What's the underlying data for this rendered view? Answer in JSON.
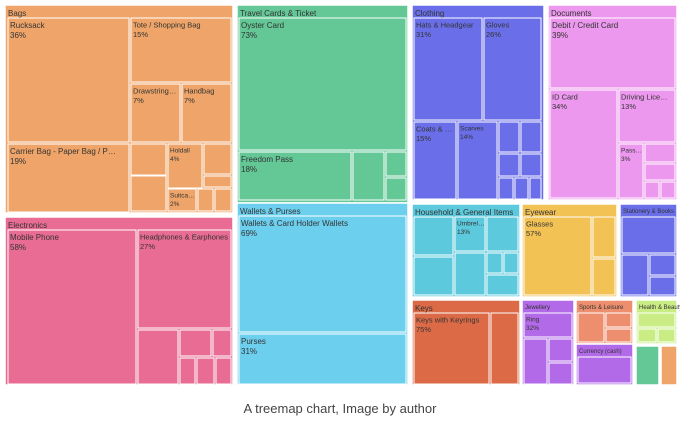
{
  "caption": "A treemap chart, Image by author",
  "chart_data": {
    "type": "treemap",
    "categories": [
      {
        "name": "Bags",
        "color": "#efa569",
        "children": [
          {
            "name": "Rucksack",
            "pct": "36%"
          },
          {
            "name": "Tote / Shopping Bag",
            "pct": "15%"
          },
          {
            "name": "Drawstring Bag",
            "pct": "7%"
          },
          {
            "name": "Handbag",
            "pct": "7%"
          },
          {
            "name": "Carrier Bag - Paper Bag / Plastic Bag",
            "pct": "19%"
          },
          {
            "name": "Holdall",
            "pct": "4%"
          },
          {
            "name": "Suitcase",
            "pct": "2%"
          }
        ]
      },
      {
        "name": "Travel Cards & Ticket",
        "color": "#63c796",
        "children": [
          {
            "name": "Oyster Card",
            "pct": "73%"
          },
          {
            "name": "Freedom Pass",
            "pct": "18%"
          }
        ]
      },
      {
        "name": "Clothing",
        "color": "#6a6fe9",
        "children": [
          {
            "name": "Hats & Headgear",
            "pct": "31%"
          },
          {
            "name": "Gloves",
            "pct": "26%"
          },
          {
            "name": "Coats & Jackets",
            "pct": "15%"
          },
          {
            "name": "Scarves",
            "pct": "14%"
          }
        ]
      },
      {
        "name": "Documents",
        "color": "#ec98ee",
        "children": [
          {
            "name": "Debit / Credit Card",
            "pct": "39%"
          },
          {
            "name": "ID Card",
            "pct": "34%"
          },
          {
            "name": "Driving Licence",
            "pct": "13%"
          },
          {
            "name": "Passport",
            "pct": "3%"
          }
        ]
      },
      {
        "name": "Electronics",
        "color": "#e96c94",
        "children": [
          {
            "name": "Mobile Phone",
            "pct": "58%"
          },
          {
            "name": "Headphones & Earphones",
            "pct": "27%"
          }
        ]
      },
      {
        "name": "Wallets & Purses",
        "color": "#6dcfee",
        "children": [
          {
            "name": "Wallets & Card Holder Wallets",
            "pct": "69%"
          },
          {
            "name": "Purses",
            "pct": "31%"
          }
        ]
      },
      {
        "name": "Household & General Items",
        "color": "#5cc9dc",
        "children": [
          {
            "name": "Umbrella",
            "pct": "13%"
          }
        ]
      },
      {
        "name": "Eyewear",
        "color": "#f2c255",
        "children": [
          {
            "name": "Glasses",
            "pct": "57%"
          }
        ]
      },
      {
        "name": "Stationery & Books",
        "color": "#6a6fe9",
        "children": []
      },
      {
        "name": "Keys",
        "color": "#dd6a47",
        "children": [
          {
            "name": "Keys with Keyrings",
            "pct": "75%"
          }
        ]
      },
      {
        "name": "Jewellery",
        "color": "#b36ae8",
        "children": [
          {
            "name": "Ring",
            "pct": "32%"
          }
        ]
      },
      {
        "name": "Sports & Leisure",
        "color": "#ed8f6e",
        "children": []
      },
      {
        "name": "Health & Beauty",
        "color": "#c9ec85",
        "children": []
      },
      {
        "name": "Currency (cash)",
        "color": "#b36ae8",
        "children": []
      }
    ]
  }
}
